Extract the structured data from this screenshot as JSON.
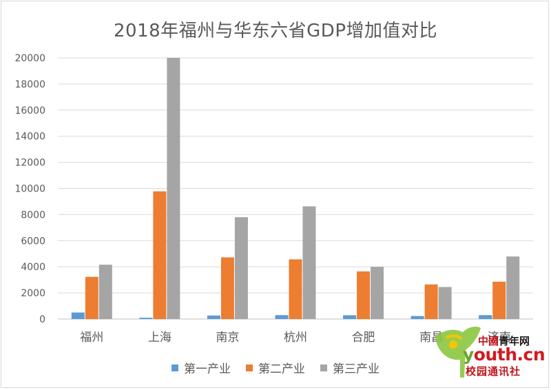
{
  "chart_data": {
    "type": "bar",
    "title": "2018年福州与华东六省GDP增加值对比",
    "categories": [
      "福州",
      "上海",
      "南京",
      "杭州",
      "合肥",
      "南昌",
      "济南"
    ],
    "series": [
      {
        "name": "第一产业",
        "color": "#5b9bd5",
        "values": [
          500,
          100,
          270,
          300,
          290,
          230,
          300
        ]
      },
      {
        "name": "第二产业",
        "color": "#ed7d31",
        "values": [
          3230,
          9780,
          4720,
          4570,
          3650,
          2650,
          2860
        ]
      },
      {
        "name": "第三产业",
        "color": "#a5a5a5",
        "values": [
          4160,
          20000,
          7800,
          8630,
          4000,
          2450,
          4790
        ]
      }
    ],
    "ylim": [
      0,
      20000
    ],
    "yticks": [
      "0",
      "2000",
      "4000",
      "6000",
      "8000",
      "10000",
      "12000",
      "14000",
      "16000",
      "18000",
      "20000"
    ],
    "grid": true,
    "legend": "bottom"
  },
  "watermark": {
    "line1_cn": "中國",
    "line1_rest": "青年网",
    "line2_first": "y",
    "line2_rest": "outh.cn",
    "line3": "校园通讯社"
  }
}
